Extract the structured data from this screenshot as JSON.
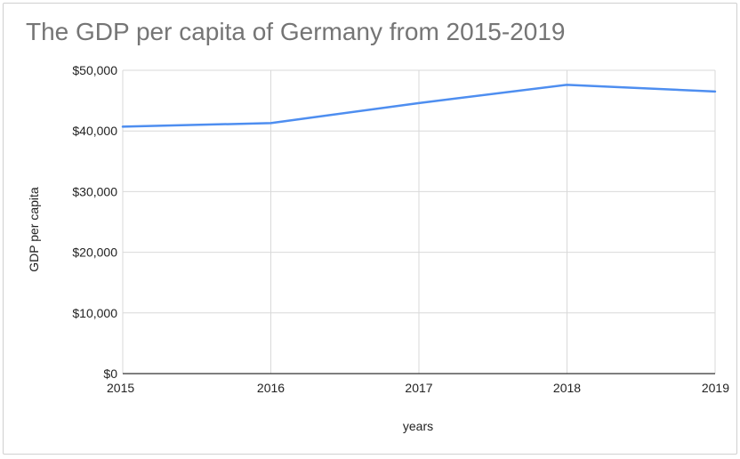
{
  "chart_data": {
    "type": "line",
    "title": "The GDP per capita of Germany from 2015-2019",
    "xlabel": "years",
    "ylabel": "GDP per capita",
    "categories": [
      "2015",
      "2016",
      "2017",
      "2018",
      "2019"
    ],
    "series": [
      {
        "values": [
          40700,
          41300,
          44600,
          47600,
          46500
        ]
      }
    ],
    "ylim": [
      0,
      50000
    ],
    "yticks": [
      "$0",
      "$10,000",
      "$20,000",
      "$30,000",
      "$40,000",
      "$50,000"
    ],
    "grid": true,
    "colors": {
      "line": "#4e8ef0",
      "grid": "#d9d9d9",
      "axis": "#333333"
    }
  }
}
